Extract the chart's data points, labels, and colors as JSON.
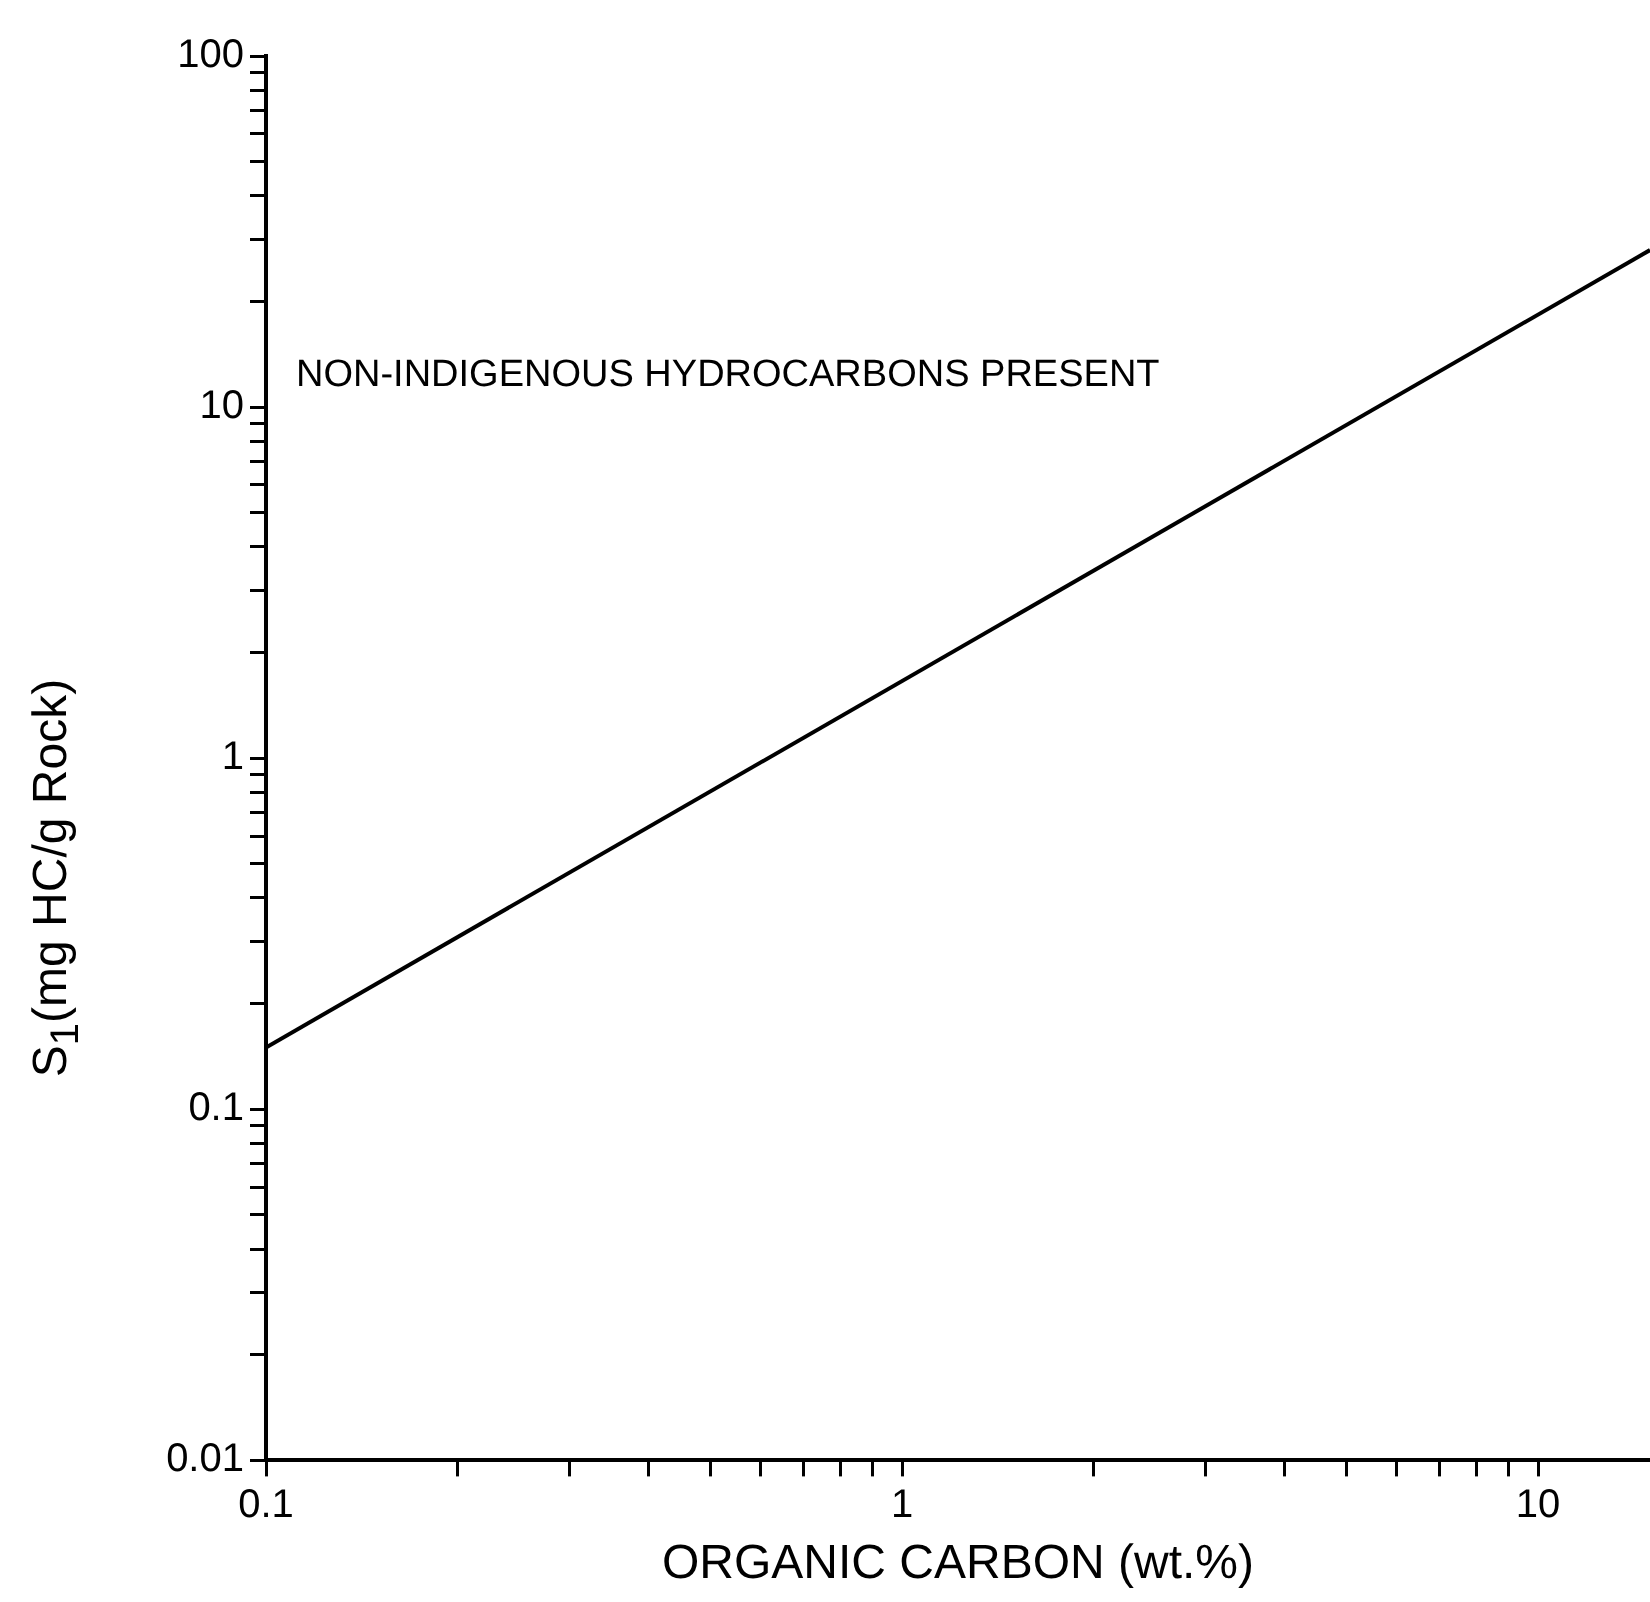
{
  "chart_data": {
    "type": "line",
    "xlabel": "ORGANIC CARBON (wt.%)",
    "ylabel": "S$_{1}$(mg HC/g Rock)",
    "annotations": [
      "NON-INDIGENOUS HYDROCARBONS PRESENT"
    ],
    "series": [
      {
        "color": "#000000",
        "x": [
          0.1,
          15
        ],
        "values": [
          0.15,
          28
        ]
      }
    ],
    "log": "xy",
    "xlim": [
      0.1,
      15
    ],
    "ylim": [
      0.01,
      100
    ],
    "xticks": [
      0.1,
      {
        "value": 0.2,
        "label": null
      },
      {
        "value": 0.3,
        "label": null
      },
      {
        "value": 0.4,
        "label": null
      },
      {
        "value": 0.5,
        "label": null
      },
      {
        "value": 0.6,
        "label": null
      },
      {
        "value": 0.7,
        "label": null
      },
      {
        "value": 0.8,
        "label": null
      },
      {
        "value": 0.9,
        "label": null
      },
      1,
      {
        "value": 2,
        "label": null
      },
      {
        "value": 3,
        "label": null
      },
      {
        "value": 4,
        "label": null
      },
      {
        "value": 5,
        "label": null
      },
      {
        "value": 6,
        "label": null
      },
      {
        "value": 7,
        "label": null
      },
      {
        "value": 8,
        "label": null
      },
      {
        "value": 9,
        "label": null
      },
      10
    ],
    "yticks": [
      0.01,
      {
        "value": 0.02,
        "label": null
      },
      {
        "value": 0.03,
        "label": null
      },
      {
        "value": 0.04,
        "label": null
      },
      {
        "value": 0.05,
        "label": null
      },
      {
        "value": 0.06,
        "label": null
      },
      {
        "value": 0.07,
        "label": null
      },
      {
        "value": 0.08,
        "label": null
      },
      {
        "value": 0.09,
        "label": null
      },
      0.1,
      {
        "value": 0.2,
        "label": null
      },
      {
        "value": 0.3,
        "label": null
      },
      {
        "value": 0.4,
        "label": null
      },
      {
        "value": 0.5,
        "label": null
      },
      {
        "value": 0.6,
        "label": null
      },
      {
        "value": 0.7,
        "label": null
      },
      {
        "value": 0.8,
        "label": null
      },
      {
        "value": 0.9,
        "label": null
      },
      1,
      {
        "value": 2,
        "label": null
      },
      {
        "value": 3,
        "label": null
      },
      {
        "value": 4,
        "label": null
      },
      {
        "value": 5,
        "label": null
      },
      {
        "value": 6,
        "label": null
      },
      {
        "value": 7,
        "label": null
      },
      {
        "value": 8,
        "label": null
      },
      {
        "value": 9,
        "label": null
      },
      10,
      {
        "value": 20,
        "label": null
      },
      {
        "value": 30,
        "label": null
      },
      {
        "value": 40,
        "label": null
      },
      {
        "value": 50,
        "label": null
      },
      {
        "value": 60,
        "label": null
      },
      {
        "value": 70,
        "label": null
      },
      {
        "value": 80,
        "label": null
      },
      {
        "value": 90,
        "label": null
      },
      100
    ],
    "grid": false,
    "legend": false,
    "marker": "none",
    "line_style": "solid"
  }
}
